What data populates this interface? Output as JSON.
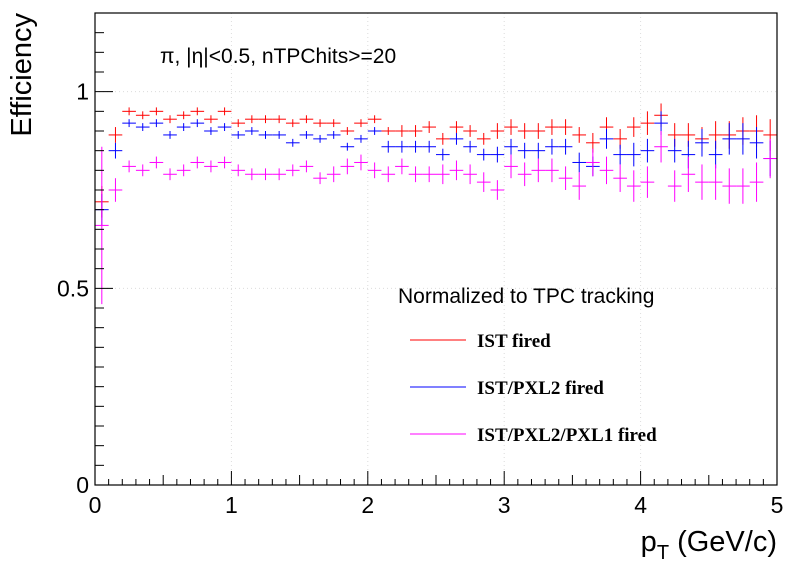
{
  "chart_data": {
    "type": "scatter",
    "annotation": "π, |η|<0.5, nTPChits>=20",
    "xlabel_main": "p",
    "xlabel_sub": "T",
    "xlabel_rest": " (GeV/c)",
    "ylabel": "Efficiency",
    "xlim": [
      0,
      5
    ],
    "ylim": [
      0,
      1.2
    ],
    "x_ticks": [
      0,
      1,
      2,
      3,
      4,
      5
    ],
    "x_tick_labels": [
      "0",
      "1",
      "2",
      "3",
      "4",
      "5"
    ],
    "y_ticks": [
      0,
      0.5,
      1
    ],
    "y_tick_labels": [
      "0",
      "0.5",
      "1"
    ],
    "grid": true,
    "legend_title": "Normalized to TPC tracking",
    "legend_placement": "bottom-right",
    "x_bin_width": 0.1,
    "series": [
      {
        "name": "IST fired",
        "color": "#ff0000",
        "x": [
          0.05,
          0.15,
          0.25,
          0.35,
          0.45,
          0.55,
          0.65,
          0.75,
          0.85,
          0.95,
          1.05,
          1.15,
          1.25,
          1.35,
          1.45,
          1.55,
          1.65,
          1.75,
          1.85,
          1.95,
          2.05,
          2.15,
          2.25,
          2.35,
          2.45,
          2.55,
          2.65,
          2.75,
          2.85,
          2.95,
          3.05,
          3.15,
          3.25,
          3.35,
          3.45,
          3.55,
          3.65,
          3.75,
          3.85,
          3.95,
          4.05,
          4.15,
          4.25,
          4.35,
          4.45,
          4.55,
          4.65,
          4.75,
          4.85,
          4.95
        ],
        "y": [
          0.72,
          0.89,
          0.95,
          0.94,
          0.95,
          0.93,
          0.94,
          0.95,
          0.93,
          0.95,
          0.92,
          0.93,
          0.93,
          0.93,
          0.92,
          0.93,
          0.92,
          0.92,
          0.9,
          0.92,
          0.93,
          0.9,
          0.9,
          0.9,
          0.91,
          0.88,
          0.91,
          0.9,
          0.88,
          0.9,
          0.91,
          0.9,
          0.9,
          0.91,
          0.91,
          0.89,
          0.87,
          0.91,
          0.88,
          0.91,
          0.92,
          0.94,
          0.89,
          0.89,
          0.88,
          0.89,
          0.89,
          0.9,
          0.9,
          0.89
        ],
        "err": [
          0.04,
          0.02,
          0.01,
          0.01,
          0.01,
          0.01,
          0.01,
          0.01,
          0.01,
          0.01,
          0.01,
          0.01,
          0.01,
          0.01,
          0.01,
          0.01,
          0.01,
          0.01,
          0.01,
          0.01,
          0.01,
          0.01,
          0.015,
          0.015,
          0.015,
          0.015,
          0.015,
          0.015,
          0.015,
          0.02,
          0.02,
          0.02,
          0.02,
          0.02,
          0.02,
          0.02,
          0.025,
          0.025,
          0.025,
          0.025,
          0.03,
          0.03,
          0.03,
          0.03,
          0.03,
          0.035,
          0.035,
          0.035,
          0.04,
          0.04
        ]
      },
      {
        "name": "IST/PXL2 fired",
        "color": "#0000ff",
        "x": [
          0.05,
          0.15,
          0.25,
          0.35,
          0.45,
          0.55,
          0.65,
          0.75,
          0.85,
          0.95,
          1.05,
          1.15,
          1.25,
          1.35,
          1.45,
          1.55,
          1.65,
          1.75,
          1.85,
          1.95,
          2.05,
          2.15,
          2.25,
          2.35,
          2.45,
          2.55,
          2.65,
          2.75,
          2.85,
          2.95,
          3.05,
          3.15,
          3.25,
          3.35,
          3.45,
          3.55,
          3.65,
          3.75,
          3.85,
          3.95,
          4.05,
          4.15,
          4.25,
          4.35,
          4.45,
          4.55,
          4.65,
          4.75,
          4.85,
          4.95
        ],
        "y": [
          0.7,
          0.85,
          0.92,
          0.91,
          0.92,
          0.89,
          0.91,
          0.92,
          0.9,
          0.91,
          0.89,
          0.9,
          0.89,
          0.89,
          0.87,
          0.89,
          0.88,
          0.89,
          0.86,
          0.88,
          0.9,
          0.86,
          0.86,
          0.86,
          0.86,
          0.84,
          0.88,
          0.86,
          0.84,
          0.84,
          0.86,
          0.85,
          0.85,
          0.86,
          0.86,
          0.82,
          0.81,
          0.88,
          0.84,
          0.84,
          0.85,
          0.92,
          0.85,
          0.84,
          0.87,
          0.84,
          0.88,
          0.88,
          0.87,
          0.83
        ],
        "err": [
          0.04,
          0.02,
          0.01,
          0.01,
          0.01,
          0.01,
          0.01,
          0.01,
          0.01,
          0.01,
          0.01,
          0.01,
          0.01,
          0.01,
          0.01,
          0.01,
          0.01,
          0.01,
          0.01,
          0.01,
          0.01,
          0.015,
          0.015,
          0.015,
          0.015,
          0.015,
          0.015,
          0.015,
          0.015,
          0.02,
          0.02,
          0.02,
          0.02,
          0.02,
          0.02,
          0.025,
          0.025,
          0.025,
          0.025,
          0.03,
          0.03,
          0.03,
          0.03,
          0.035,
          0.035,
          0.035,
          0.04,
          0.04,
          0.04,
          0.045
        ]
      },
      {
        "name": "IST/PXL2/PXL1 fired",
        "color": "#ff00ff",
        "x": [
          0.05,
          0.15,
          0.25,
          0.35,
          0.45,
          0.55,
          0.65,
          0.75,
          0.85,
          0.95,
          1.05,
          1.15,
          1.25,
          1.35,
          1.45,
          1.55,
          1.65,
          1.75,
          1.85,
          1.95,
          2.05,
          2.15,
          2.25,
          2.35,
          2.45,
          2.55,
          2.65,
          2.75,
          2.85,
          2.95,
          3.05,
          3.15,
          3.25,
          3.35,
          3.45,
          3.55,
          3.65,
          3.75,
          3.85,
          3.95,
          4.05,
          4.15,
          4.25,
          4.35,
          4.45,
          4.55,
          4.65,
          4.75,
          4.85,
          4.95
        ],
        "y": [
          0.66,
          0.75,
          0.81,
          0.8,
          0.82,
          0.79,
          0.8,
          0.82,
          0.81,
          0.82,
          0.8,
          0.79,
          0.79,
          0.79,
          0.8,
          0.81,
          0.78,
          0.79,
          0.81,
          0.82,
          0.8,
          0.79,
          0.81,
          0.79,
          0.79,
          0.79,
          0.8,
          0.79,
          0.77,
          0.75,
          0.81,
          0.79,
          0.8,
          0.8,
          0.78,
          0.76,
          0.82,
          0.8,
          0.78,
          0.76,
          0.77,
          0.86,
          0.76,
          0.79,
          0.77,
          0.77,
          0.76,
          0.76,
          0.77,
          0.83
        ],
        "err": [
          0.2,
          0.03,
          0.015,
          0.015,
          0.015,
          0.015,
          0.015,
          0.015,
          0.015,
          0.015,
          0.015,
          0.015,
          0.015,
          0.015,
          0.015,
          0.015,
          0.015,
          0.02,
          0.02,
          0.02,
          0.02,
          0.02,
          0.02,
          0.02,
          0.02,
          0.025,
          0.025,
          0.025,
          0.025,
          0.025,
          0.03,
          0.03,
          0.03,
          0.03,
          0.03,
          0.035,
          0.035,
          0.035,
          0.035,
          0.04,
          0.04,
          0.04,
          0.04,
          0.045,
          0.045,
          0.045,
          0.045,
          0.045,
          0.05,
          0.05
        ]
      }
    ]
  }
}
